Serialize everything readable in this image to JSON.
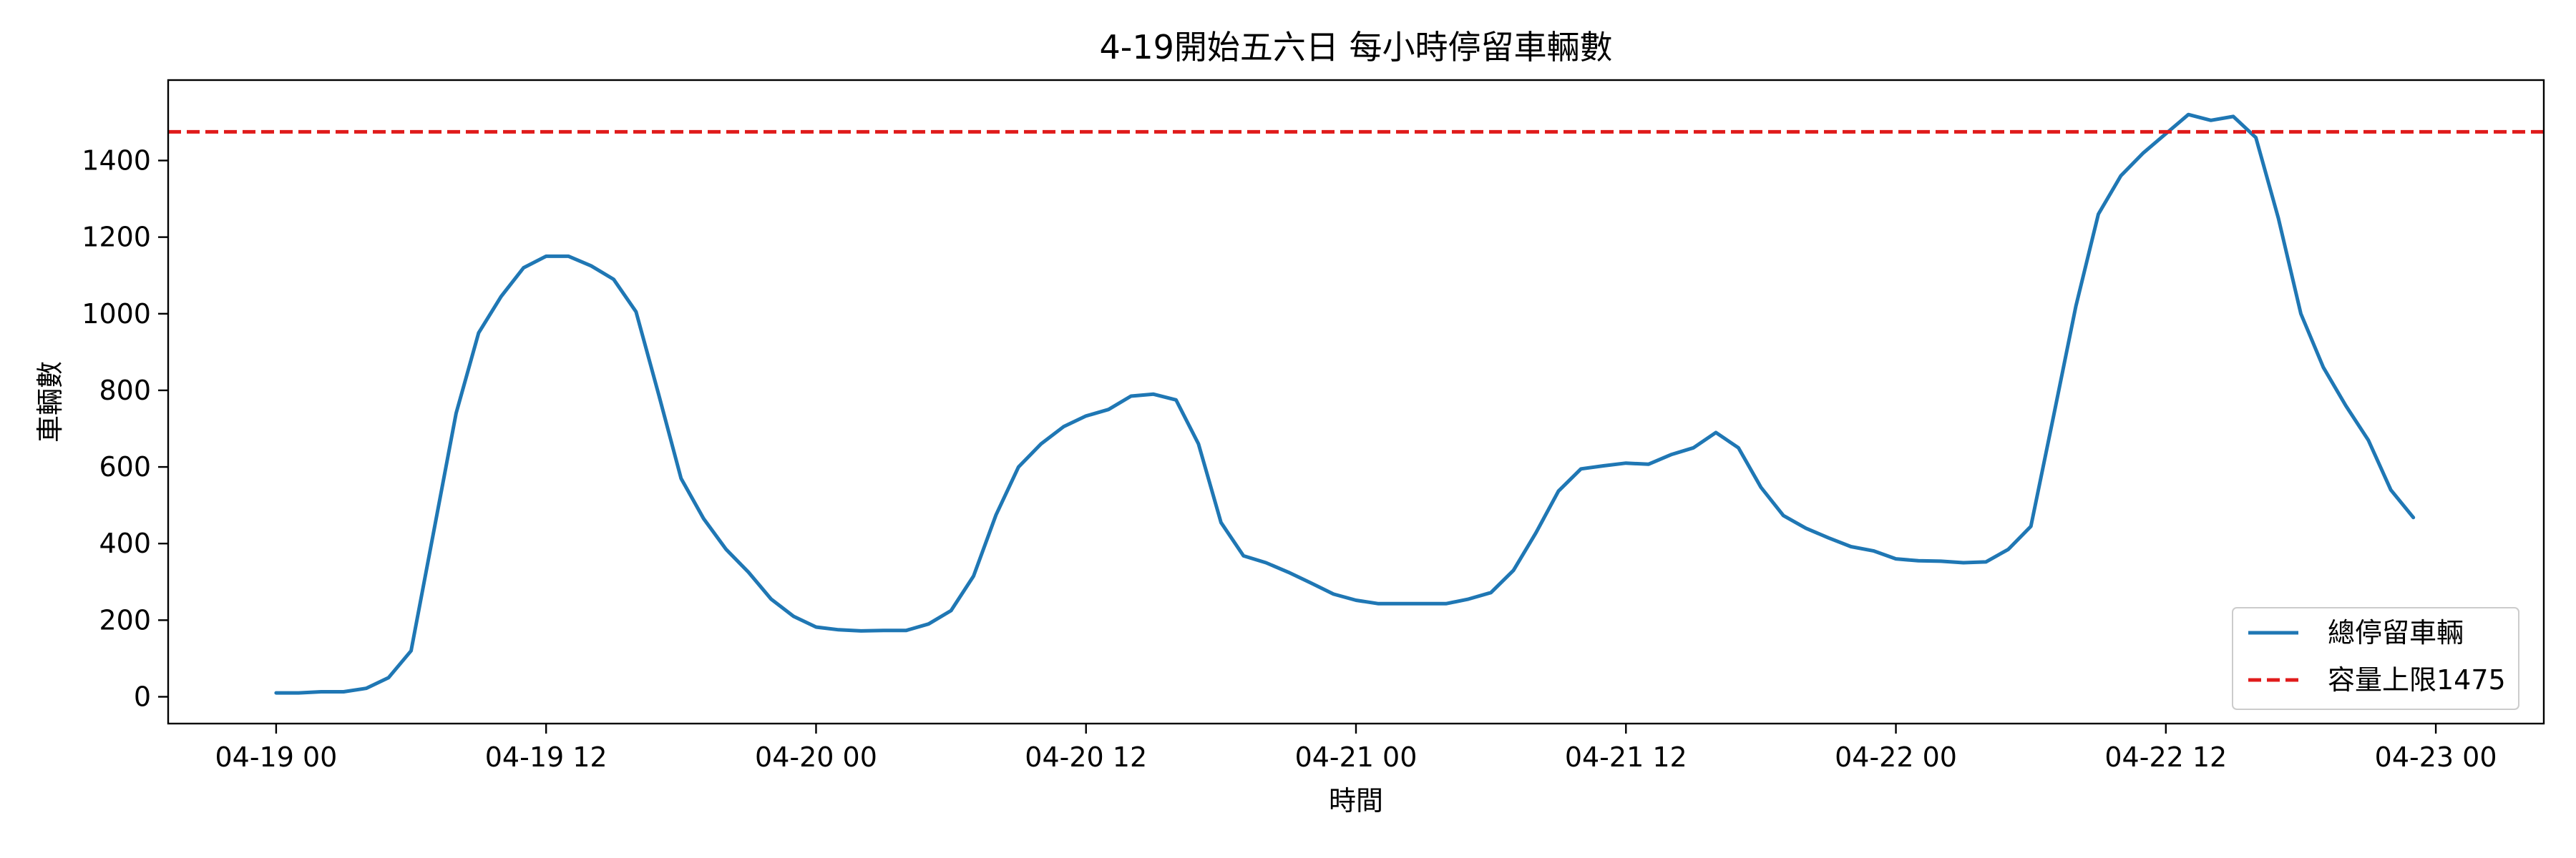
{
  "chart_data": {
    "type": "line",
    "title": "4-19開始五六日 每小時停留車輛數",
    "xlabel": "時間",
    "ylabel": "車輛數",
    "x_start": "04-19 00",
    "x_step_hours": 1,
    "xlim_hours": [
      -4.8,
      100.8
    ],
    "ylim": [
      -70,
      1610
    ],
    "x_ticks": [
      {
        "hour": 0,
        "label": "04-19 00"
      },
      {
        "hour": 12,
        "label": "04-19 12"
      },
      {
        "hour": 24,
        "label": "04-20 00"
      },
      {
        "hour": 36,
        "label": "04-20 12"
      },
      {
        "hour": 48,
        "label": "04-21 00"
      },
      {
        "hour": 60,
        "label": "04-21 12"
      },
      {
        "hour": 72,
        "label": "04-22 00"
      },
      {
        "hour": 84,
        "label": "04-22 12"
      },
      {
        "hour": 96,
        "label": "04-23 00"
      }
    ],
    "y_ticks": [
      0,
      200,
      400,
      600,
      800,
      1000,
      1200,
      1400
    ],
    "series": [
      {
        "name": "總停留車輛",
        "color": "#1f77b4",
        "style": "solid",
        "values": [
          10,
          10,
          13,
          13,
          22,
          50,
          120,
          430,
          740,
          950,
          1045,
          1120,
          1150,
          1150,
          1125,
          1090,
          1005,
          790,
          570,
          465,
          385,
          325,
          255,
          210,
          182,
          175,
          172,
          173,
          173,
          190,
          225,
          315,
          475,
          600,
          660,
          705,
          733,
          750,
          785,
          790,
          775,
          660,
          455,
          368,
          350,
          325,
          297,
          268,
          252,
          243,
          243,
          243,
          243,
          255,
          272,
          330,
          428,
          537,
          595,
          603,
          610,
          607,
          632,
          650,
          690,
          650,
          547,
          473,
          440,
          415,
          392,
          381,
          360,
          355,
          354,
          350,
          352,
          385,
          445,
          730,
          1020,
          1260,
          1360,
          1420,
          1470,
          1520,
          1505,
          1515,
          1460,
          1250,
          1000,
          860,
          760,
          670,
          540,
          468
        ]
      },
      {
        "name": "容量上限1475",
        "color": "#e01b1b",
        "style": "dashed",
        "y": 1475
      }
    ],
    "grid": false,
    "legend_position": "lower-right"
  }
}
